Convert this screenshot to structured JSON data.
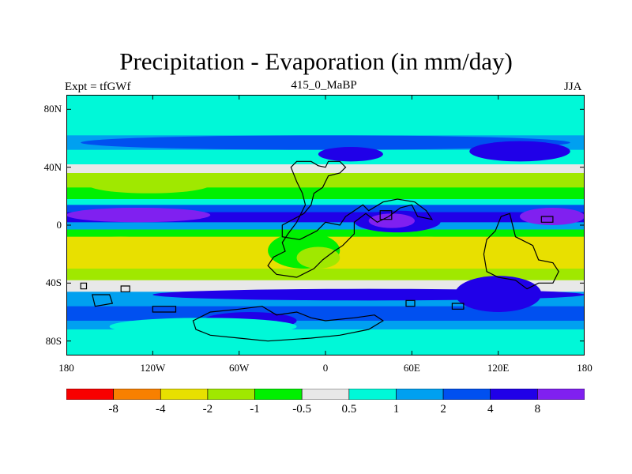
{
  "title": "Precipitation - Evaporation (in mm/day)",
  "subtitle": {
    "left": "Expt = tfGWf",
    "center": "415_0_MaBP",
    "right": "JJA"
  },
  "map_data": {
    "type": "filled-contour-map",
    "variable": "Precipitation - Evaporation",
    "units": "mm/day",
    "season": "JJA",
    "experiment": "tfGWf",
    "period": "415_0_MaBP",
    "lon_range": [
      -180,
      180
    ],
    "lat_range": [
      -90,
      90
    ],
    "x_ticks": [
      {
        "lon": -180,
        "label": "180"
      },
      {
        "lon": -120,
        "label": "120W"
      },
      {
        "lon": -60,
        "label": "60W"
      },
      {
        "lon": 0,
        "label": "0"
      },
      {
        "lon": 60,
        "label": "60E"
      },
      {
        "lon": 120,
        "label": "120E"
      },
      {
        "lon": 180,
        "label": "180"
      }
    ],
    "y_ticks": [
      {
        "lat": 80,
        "label": "80N"
      },
      {
        "lat": 40,
        "label": "40N"
      },
      {
        "lat": 0,
        "label": "0"
      },
      {
        "lat": -40,
        "label": "40S"
      },
      {
        "lat": -80,
        "label": "80S"
      }
    ],
    "zonal_bands": [
      {
        "lat_top": 90,
        "lat_bottom": 62,
        "class": 6
      },
      {
        "lat_top": 62,
        "lat_bottom": 52,
        "class": 7
      },
      {
        "lat_top": 52,
        "lat_bottom": 42,
        "class": 6
      },
      {
        "lat_top": 42,
        "lat_bottom": 36,
        "class": 5
      },
      {
        "lat_top": 36,
        "lat_bottom": 26,
        "class": 3
      },
      {
        "lat_top": 26,
        "lat_bottom": 18,
        "class": 4
      },
      {
        "lat_top": 18,
        "lat_bottom": 14,
        "class": 6
      },
      {
        "lat_top": 14,
        "lat_bottom": 9,
        "class": 8
      },
      {
        "lat_top": 9,
        "lat_bottom": 2,
        "class": 9
      },
      {
        "lat_top": 2,
        "lat_bottom": -3,
        "class": 7
      },
      {
        "lat_top": -3,
        "lat_bottom": -8,
        "class": 4
      },
      {
        "lat_top": -8,
        "lat_bottom": -30,
        "class": 2
      },
      {
        "lat_top": -30,
        "lat_bottom": -38,
        "class": 3
      },
      {
        "lat_top": -38,
        "lat_bottom": -46,
        "class": 5
      },
      {
        "lat_top": -46,
        "lat_bottom": -56,
        "class": 7
      },
      {
        "lat_top": -56,
        "lat_bottom": -66,
        "class": 8
      },
      {
        "lat_top": -66,
        "lat_bottom": -72,
        "class": 7
      },
      {
        "lat_top": -72,
        "lat_bottom": -90,
        "class": 6
      }
    ],
    "regions": [
      {
        "name": "north-storm-track",
        "lon": [
          -170,
          170
        ],
        "lat": [
          62,
          52
        ],
        "class": 8
      },
      {
        "name": "east-asia-low",
        "lon": [
          100,
          170
        ],
        "lat": [
          58,
          44
        ],
        "class": 9
      },
      {
        "name": "north-atlantic-low",
        "lon": [
          -5,
          40
        ],
        "lat": [
          54,
          44
        ],
        "class": 9
      },
      {
        "name": "north-pacific-dry",
        "lon": [
          -165,
          -80
        ],
        "lat": [
          34,
          22
        ],
        "class": 3
      },
      {
        "name": "central-pacific-itcz",
        "lon": [
          -180,
          -80
        ],
        "lat": [
          12,
          2
        ],
        "class": 10
      },
      {
        "name": "west-pacific-itcz",
        "lon": [
          135,
          180
        ],
        "lat": [
          12,
          0
        ],
        "class": 10
      },
      {
        "name": "continent-wet",
        "lon": [
          20,
          80
        ],
        "lat": [
          10,
          -5
        ],
        "class": 9
      },
      {
        "name": "continent-core",
        "lon": [
          30,
          62
        ],
        "lat": [
          8,
          -2
        ],
        "class": 10
      },
      {
        "name": "south-pacific-dry",
        "lon": [
          -175,
          -110
        ],
        "lat": [
          -8,
          -24
        ],
        "class": 2
      },
      {
        "name": "south-atlantic-green",
        "lon": [
          -40,
          10
        ],
        "lat": [
          -5,
          -30
        ],
        "class": 4
      },
      {
        "name": "south-atlantic-yellow",
        "lon": [
          -20,
          10
        ],
        "lat": [
          -15,
          -30
        ],
        "class": 3
      },
      {
        "name": "indian-ocean-dry",
        "lon": [
          40,
          100
        ],
        "lat": [
          -8,
          -26
        ],
        "class": 2
      },
      {
        "name": "west-indian-dry",
        "lon": [
          130,
          165
        ],
        "lat": [
          -10,
          -30
        ],
        "class": 2
      },
      {
        "name": "south-storm-track",
        "lon": [
          -120,
          180
        ],
        "lat": [
          -44,
          -52
        ],
        "class": 9
      },
      {
        "name": "antarctic-margin-east",
        "lon": [
          90,
          150
        ],
        "lat": [
          -35,
          -60
        ],
        "class": 9
      },
      {
        "name": "southern-coast-dark",
        "lon": [
          -85,
          -20
        ],
        "lat": [
          -60,
          -72
        ],
        "class": 9
      },
      {
        "name": "antarctic-ice",
        "lon": [
          -150,
          -20
        ],
        "lat": [
          -64,
          -76
        ],
        "class": 6
      }
    ],
    "land_outlines": [
      {
        "name": "continent-north",
        "points": [
          [
            -24,
            40
          ],
          [
            -20,
            44
          ],
          [
            -10,
            44
          ],
          [
            -5,
            41
          ],
          [
            0,
            40
          ],
          [
            2,
            44
          ],
          [
            10,
            44
          ],
          [
            14,
            40
          ],
          [
            10,
            36
          ],
          [
            2,
            34
          ],
          [
            -2,
            26
          ],
          [
            -8,
            22
          ],
          [
            -10,
            14
          ],
          [
            -15,
            8
          ],
          [
            -30,
            0
          ],
          [
            -30,
            -8
          ],
          [
            -18,
            -10
          ],
          [
            -6,
            -4
          ],
          [
            0,
            2
          ],
          [
            10,
            0
          ],
          [
            14,
            6
          ],
          [
            20,
            10
          ],
          [
            26,
            14
          ],
          [
            30,
            10
          ],
          [
            40,
            16
          ],
          [
            50,
            18
          ],
          [
            62,
            16
          ],
          [
            70,
            10
          ],
          [
            74,
            4
          ],
          [
            64,
            6
          ],
          [
            60,
            14
          ],
          [
            52,
            12
          ],
          [
            44,
            6
          ],
          [
            36,
            2
          ],
          [
            28,
            8
          ],
          [
            20,
            2
          ],
          [
            20,
            -6
          ],
          [
            12,
            -14
          ],
          [
            6,
            -18
          ],
          [
            -2,
            -24
          ],
          [
            -8,
            -30
          ],
          [
            -20,
            -36
          ],
          [
            -34,
            -34
          ],
          [
            -40,
            -28
          ],
          [
            -36,
            -22
          ],
          [
            -28,
            -18
          ],
          [
            -30,
            -12
          ],
          [
            -26,
            -6
          ],
          [
            -20,
            2
          ],
          [
            -14,
            14
          ],
          [
            -16,
            22
          ],
          [
            -20,
            30
          ],
          [
            -24,
            40
          ]
        ]
      },
      {
        "name": "continent-east",
        "points": [
          [
            122,
            6
          ],
          [
            128,
            8
          ],
          [
            132,
            -8
          ],
          [
            144,
            -14
          ],
          [
            148,
            -24
          ],
          [
            158,
            -26
          ],
          [
            162,
            -32
          ],
          [
            158,
            -40
          ],
          [
            148,
            -40
          ],
          [
            140,
            -44
          ],
          [
            132,
            -38
          ],
          [
            120,
            -36
          ],
          [
            112,
            -32
          ],
          [
            110,
            -20
          ],
          [
            112,
            -10
          ],
          [
            118,
            -4
          ],
          [
            122,
            6
          ]
        ]
      },
      {
        "name": "southern-landmass",
        "points": [
          [
            -80,
            -60
          ],
          [
            -60,
            -58
          ],
          [
            -44,
            -56
          ],
          [
            -34,
            -62
          ],
          [
            -20,
            -60
          ],
          [
            -10,
            -64
          ],
          [
            0,
            -66
          ],
          [
            20,
            -64
          ],
          [
            34,
            -62
          ],
          [
            40,
            -66
          ],
          [
            30,
            -72
          ],
          [
            10,
            -76
          ],
          [
            -10,
            -78
          ],
          [
            -40,
            -80
          ],
          [
            -60,
            -78
          ],
          [
            -80,
            -76
          ],
          [
            -90,
            -72
          ],
          [
            -92,
            -66
          ],
          [
            -80,
            -60
          ]
        ]
      },
      {
        "name": "tip-west",
        "points": [
          [
            -162,
            -48
          ],
          [
            -150,
            -48
          ],
          [
            -148,
            -54
          ],
          [
            -160,
            -56
          ],
          [
            -162,
            -48
          ]
        ]
      },
      {
        "name": "isle-a",
        "points": [
          [
            -120,
            -56
          ],
          [
            -104,
            -56
          ],
          [
            -104,
            -60
          ],
          [
            -120,
            -60
          ],
          [
            -120,
            -56
          ]
        ]
      },
      {
        "name": "isle-b",
        "points": [
          [
            -142,
            -42
          ],
          [
            -136,
            -42
          ],
          [
            -136,
            -46
          ],
          [
            -142,
            -46
          ],
          [
            -142,
            -42
          ]
        ]
      },
      {
        "name": "isle-c",
        "points": [
          [
            56,
            -52
          ],
          [
            62,
            -52
          ],
          [
            62,
            -56
          ],
          [
            56,
            -56
          ],
          [
            56,
            -52
          ]
        ]
      },
      {
        "name": "isle-d",
        "points": [
          [
            88,
            -54
          ],
          [
            96,
            -54
          ],
          [
            96,
            -58
          ],
          [
            88,
            -58
          ],
          [
            88,
            -54
          ]
        ]
      },
      {
        "name": "isle-e",
        "points": [
          [
            -170,
            -40
          ],
          [
            -166,
            -40
          ],
          [
            -166,
            -44
          ],
          [
            -170,
            -44
          ],
          [
            -170,
            -40
          ]
        ]
      },
      {
        "name": "isle-f",
        "points": [
          [
            150,
            6
          ],
          [
            158,
            6
          ],
          [
            158,
            2
          ],
          [
            150,
            2
          ],
          [
            150,
            6
          ]
        ]
      },
      {
        "name": "isle-g",
        "points": [
          [
            38,
            10
          ],
          [
            46,
            10
          ],
          [
            46,
            4
          ],
          [
            38,
            4
          ],
          [
            38,
            10
          ]
        ]
      }
    ]
  },
  "colorbar": {
    "colors": [
      "#f80000",
      "#f88000",
      "#e8e000",
      "#a0e800",
      "#00f000",
      "#e8e8e8",
      "#00f8d8",
      "#00a0f0",
      "#0050f0",
      "#2000e8",
      "#8020f0"
    ],
    "labels": [
      "-8",
      "-4",
      "-2",
      "-1",
      "-0.5",
      "0.5",
      "1",
      "2",
      "4",
      "8"
    ]
  }
}
